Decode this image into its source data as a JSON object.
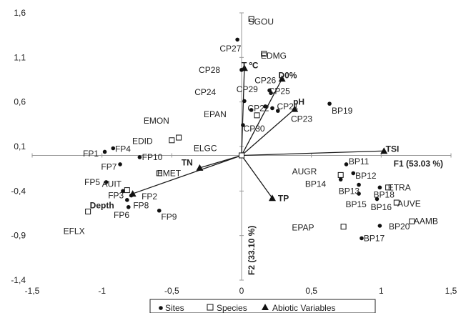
{
  "chart_data": {
    "type": "scatter",
    "xlim": [
      -1.5,
      1.5
    ],
    "ylim": [
      -1.4,
      1.6
    ],
    "x_ticks": [
      -1.5,
      -1,
      -0.5,
      0,
      0.5,
      1,
      1.5
    ],
    "x_tick_labels": [
      "-1,5",
      "-1",
      "-0,5",
      "0",
      "0,5",
      "1",
      "1,5"
    ],
    "y_ticks": [
      1.6,
      1.1,
      0.6,
      0.1,
      -0.4,
      -0.9,
      -1.4
    ],
    "y_tick_labels": [
      "1,6",
      "1,1",
      "0,6",
      "0,1",
      "-0,4",
      "-0,9",
      "-1,4"
    ],
    "xlabel": "F1 (53.03 %)",
    "ylabel": "F2 (33.10 %)",
    "legend": {
      "position": "bottom",
      "items": [
        {
          "marker": "dot",
          "label": "Sites"
        },
        {
          "marker": "square",
          "label": "Species"
        },
        {
          "marker": "triangle",
          "label": "Abiotic Variables"
        }
      ]
    },
    "series": [
      {
        "name": "Sites",
        "marker": "dot",
        "points": [
          {
            "label": "CP27",
            "x": -0.03,
            "y": 1.3,
            "lx": -0.08,
            "ly": 1.2
          },
          {
            "label": "CP28",
            "x": 0.0,
            "y": 0.96,
            "lx": -0.23,
            "ly": 0.96
          },
          {
            "label": "CP24",
            "x": 0.02,
            "y": 0.61,
            "lx": -0.26,
            "ly": 0.71
          },
          {
            "label": "CP29",
            "x": 0.07,
            "y": 0.51,
            "lx": 0.04,
            "ly": 0.74
          },
          {
            "label": "CP26",
            "x": 0.2,
            "y": 0.73,
            "lx": 0.17,
            "ly": 0.84
          },
          {
            "label": "CP25",
            "x": 0.21,
            "y": 0.7,
            "lx": 0.27,
            "ly": 0.72
          },
          {
            "label": "CP22",
            "x": 0.17,
            "y": 0.55,
            "lx": 0.12,
            "ly": 0.53
          },
          {
            "label": "CP21",
            "x": 0.22,
            "y": 0.53,
            "lx": 0.33,
            "ly": 0.55
          },
          {
            "label": "CP23",
            "x": 0.26,
            "y": 0.5,
            "lx": 0.43,
            "ly": 0.41
          },
          {
            "label": "CP30",
            "x": 0.01,
            "y": 0.34,
            "lx": 0.09,
            "ly": 0.3
          },
          {
            "label": "BP19",
            "x": 0.63,
            "y": 0.58,
            "lx": 0.72,
            "ly": 0.5
          },
          {
            "label": "FP4",
            "x": -0.92,
            "y": 0.08,
            "lx": -0.85,
            "ly": 0.07
          },
          {
            "label": "FP1",
            "x": -0.98,
            "y": 0.04,
            "lx": -1.08,
            "ly": 0.02
          },
          {
            "label": "FP7",
            "x": -0.87,
            "y": -0.1,
            "lx": -0.95,
            "ly": -0.13
          },
          {
            "label": "FP10",
            "x": -0.73,
            "y": -0.02,
            "lx": -0.64,
            "ly": -0.02
          },
          {
            "label": "FP5",
            "x": -0.97,
            "y": -0.3,
            "lx": -1.07,
            "ly": -0.3
          },
          {
            "label": "FP3",
            "x": -0.85,
            "y": -0.4,
            "lx": -0.9,
            "ly": -0.45
          },
          {
            "label": "FP2",
            "x": -0.79,
            "y": -0.45,
            "lx": -0.66,
            "ly": -0.46
          },
          {
            "label": "FP8",
            "x": -0.82,
            "y": -0.5,
            "lx": -0.72,
            "ly": -0.56
          },
          {
            "label": "FP6",
            "x": -0.81,
            "y": -0.58,
            "lx": -0.86,
            "ly": -0.67
          },
          {
            "label": "FP9",
            "x": -0.59,
            "y": -0.62,
            "lx": -0.52,
            "ly": -0.69
          },
          {
            "label": "BP11",
            "x": 0.75,
            "y": -0.1,
            "lx": 0.84,
            "ly": -0.07
          },
          {
            "label": "BP12",
            "x": 0.8,
            "y": -0.2,
            "lx": 0.89,
            "ly": -0.23
          },
          {
            "label": "BP14",
            "x": 0.71,
            "y": -0.27,
            "lx": 0.53,
            "ly": -0.32
          },
          {
            "label": "BP13",
            "x": 0.84,
            "y": -0.33,
            "lx": 0.77,
            "ly": -0.4
          },
          {
            "label": "BP18",
            "x": 0.99,
            "y": -0.36,
            "lx": 1.02,
            "ly": -0.44
          },
          {
            "label": "BP15",
            "x": 0.84,
            "y": -0.43,
            "lx": 0.82,
            "ly": -0.55
          },
          {
            "label": "BP16",
            "x": 0.97,
            "y": -0.49,
            "lx": 1.0,
            "ly": -0.58
          },
          {
            "label": "BP20",
            "x": 0.99,
            "y": -0.79,
            "lx": 1.13,
            "ly": -0.8
          },
          {
            "label": "BP17",
            "x": 0.86,
            "y": -0.93,
            "lx": 0.95,
            "ly": -0.93
          }
        ]
      },
      {
        "name": "Species",
        "marker": "square",
        "points": [
          {
            "label": "SGOU",
            "x": 0.07,
            "y": 1.53,
            "lx": 0.14,
            "ly": 1.5
          },
          {
            "label": "EDMG",
            "x": 0.16,
            "y": 1.14,
            "lx": 0.23,
            "ly": 1.12
          },
          {
            "label": "EMON",
            "x": -0.5,
            "y": 0.17,
            "lx": -0.61,
            "ly": 0.39
          },
          {
            "label": "EDID",
            "x": -0.45,
            "y": 0.2,
            "lx": -0.71,
            "ly": 0.16
          },
          {
            "label": "ELGC",
            "x": 0.0,
            "y": 0.0,
            "lx": -0.26,
            "ly": 0.08
          },
          {
            "label": "EPAN",
            "x": 0.11,
            "y": 0.45,
            "lx": -0.19,
            "ly": 0.46
          },
          {
            "label": "EMET",
            "x": -0.59,
            "y": -0.2,
            "lx": -0.52,
            "ly": -0.2
          },
          {
            "label": "AUIT",
            "x": -0.82,
            "y": -0.39,
            "lx": -0.93,
            "ly": -0.32
          },
          {
            "label": "EFLX",
            "x": -1.1,
            "y": -0.63,
            "lx": -1.2,
            "ly": -0.85
          },
          {
            "label": "AUGR",
            "x": 0.71,
            "y": -0.22,
            "lx": 0.45,
            "ly": -0.18
          },
          {
            "label": "ETRA",
            "x": 1.05,
            "y": -0.36,
            "lx": 1.13,
            "ly": -0.36
          },
          {
            "label": "AUVE",
            "x": 1.11,
            "y": -0.53,
            "lx": 1.2,
            "ly": -0.54
          },
          {
            "label": "AAMB",
            "x": 1.22,
            "y": -0.74,
            "lx": 1.32,
            "ly": -0.74
          },
          {
            "label": "EPAP",
            "x": 0.73,
            "y": -0.8,
            "lx": 0.44,
            "ly": -0.81
          }
        ]
      },
      {
        "name": "Abiotic Variables",
        "marker": "triangle",
        "points": [
          {
            "label": "T ºC",
            "x": 0.02,
            "y": 0.98,
            "lx": 0.06,
            "ly": 1.01,
            "bold": true
          },
          {
            "label": "D0%",
            "x": 0.29,
            "y": 0.86,
            "lx": 0.33,
            "ly": 0.9,
            "bold": true
          },
          {
            "label": "pH",
            "x": 0.38,
            "y": 0.52,
            "lx": 0.41,
            "ly": 0.6,
            "bold": true
          },
          {
            "label": "TSI",
            "x": 1.02,
            "y": 0.05,
            "lx": 1.08,
            "ly": 0.07,
            "bold": true
          },
          {
            "label": "TN",
            "x": -0.3,
            "y": -0.14,
            "lx": -0.39,
            "ly": -0.08,
            "bold": true
          },
          {
            "label": "TP",
            "x": 0.22,
            "y": -0.48,
            "lx": 0.3,
            "ly": -0.48,
            "bold": true
          },
          {
            "label": "Depth",
            "x": -0.78,
            "y": -0.43,
            "lx": -1.0,
            "ly": -0.56,
            "bold": true
          }
        ]
      }
    ]
  }
}
